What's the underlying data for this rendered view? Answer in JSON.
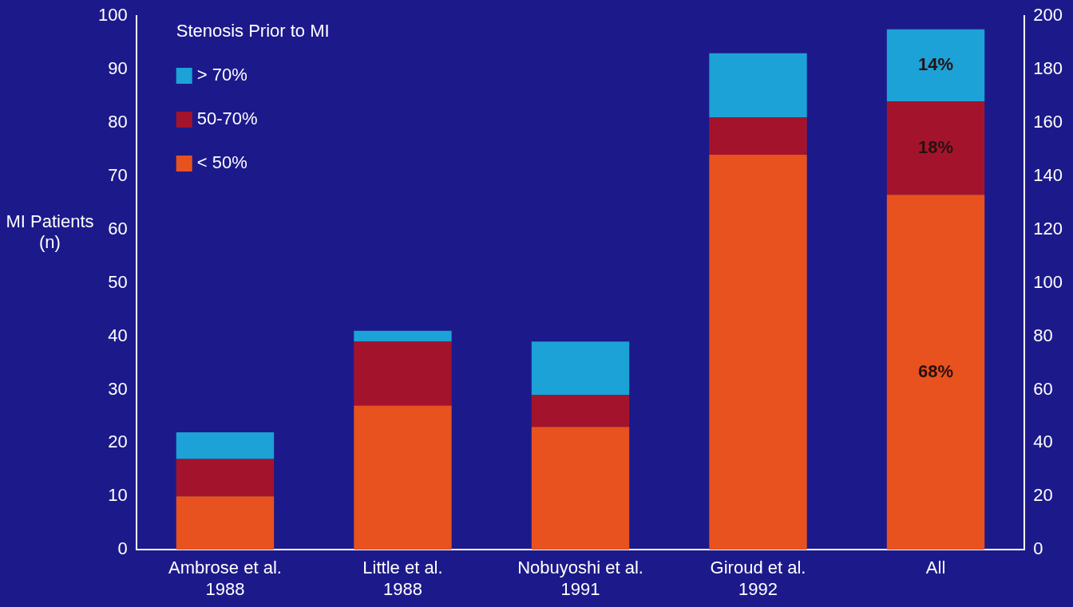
{
  "chart_data": {
    "type": "bar",
    "stacked": true,
    "ylabel": "MI Patients (n)",
    "legend_title": "Stenosis Prior to MI",
    "legend": "top left",
    "grid": false,
    "categories": [
      "Ambrose et al. 1988",
      "Little et al. 1988",
      "Nobuyoshi et al. 1991",
      "Giroud et al. 1992",
      "All"
    ],
    "ylim": [
      0,
      100
    ],
    "yticks": [
      0,
      10,
      20,
      30,
      40,
      50,
      60,
      70,
      80,
      90,
      100
    ],
    "y2lim": [
      0,
      200
    ],
    "y2ticks": [
      0,
      20,
      40,
      60,
      80,
      100,
      120,
      140,
      160,
      180,
      200
    ],
    "series": [
      {
        "name": "< 50%",
        "color": "#e8521e",
        "values": [
          10,
          27,
          23,
          74,
          null
        ]
      },
      {
        "name": "50-70%",
        "color": "#a3142c",
        "values": [
          7,
          12,
          6,
          7,
          null
        ]
      },
      {
        "name": "> 70%",
        "color": "#1ca2d6",
        "values": [
          5,
          2,
          10,
          12,
          null
        ]
      },
      {
        "color": "#e8521e",
        "axis": "y2",
        "values": [
          null,
          null,
          null,
          null,
          133
        ]
      },
      {
        "color": "#a3142c",
        "axis": "y2",
        "values": [
          null,
          null,
          null,
          null,
          35
        ]
      },
      {
        "color": "#1ca2d6",
        "axis": "y2",
        "values": [
          null,
          null,
          null,
          null,
          27
        ]
      }
    ],
    "annotations": [
      "68%",
      "18%",
      "14%"
    ]
  }
}
